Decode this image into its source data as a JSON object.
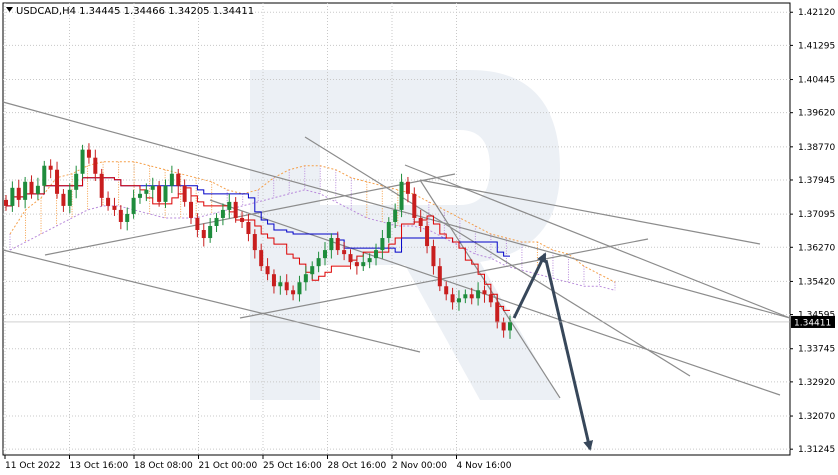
{
  "header": {
    "symbol": "USDCAD,H4",
    "open": "1.34445",
    "high": "1.34466",
    "low": "1.34205",
    "close": "1.34411"
  },
  "chart_data": {
    "type": "candlestick",
    "symbol": "USDCAD",
    "timeframe": "H4",
    "ohlc_header": {
      "open": 1.34445,
      "high": 1.34466,
      "low": 1.34205,
      "close": 1.34411
    },
    "current_price": "1.34411",
    "x_tick_labels": [
      "11 Oct 2022",
      "13 Oct 16:00",
      "18 Oct 08:00",
      "21 Oct 00:00",
      "25 Oct 16:00",
      "28 Oct 16:00",
      "2 Nov 00:00",
      "4 Nov 16:00"
    ],
    "y_tick_labels": [
      "1.42120",
      "1.41295",
      "1.40445",
      "1.39620",
      "1.38770",
      "1.37945",
      "1.37095",
      "1.36270",
      "1.35420",
      "1.34595",
      "1.33745",
      "1.32920",
      "1.32070",
      "1.31245"
    ],
    "ylim": [
      1.311,
      1.4235
    ],
    "grid": true,
    "indicators": [
      "Ichimoku Kinko Hyo (Tenkan-sen, Kijun-sen, Senkou Span cloud)"
    ],
    "closes": [
      1.373,
      1.3775,
      1.3745,
      1.379,
      1.376,
      1.378,
      1.383,
      1.382,
      1.376,
      1.373,
      1.377,
      1.381,
      1.387,
      1.385,
      1.381,
      1.375,
      1.373,
      1.372,
      1.369,
      1.371,
      1.375,
      1.376,
      1.377,
      1.378,
      1.374,
      1.378,
      1.381,
      1.378,
      1.374,
      1.37,
      1.367,
      1.365,
      1.368,
      1.37,
      1.372,
      1.374,
      1.37,
      1.369,
      1.366,
      1.362,
      1.358,
      1.356,
      1.353,
      1.354,
      1.352,
      1.351,
      1.354,
      1.356,
      1.358,
      1.36,
      1.362,
      1.365,
      1.362,
      1.361,
      1.359,
      1.358,
      1.359,
      1.36,
      1.362,
      1.365,
      1.369,
      1.372,
      1.379,
      1.376,
      1.37,
      1.368,
      1.363,
      1.358,
      1.353,
      1.351,
      1.349,
      1.35,
      1.351,
      1.35,
      1.352,
      1.351,
      1.349,
      1.344,
      1.342,
      1.3441
    ],
    "cloud_top": [
      1.366,
      1.372,
      1.375,
      1.38,
      1.381,
      1.383,
      1.384,
      1.384,
      1.384,
      1.383,
      1.382,
      1.381,
      1.38,
      1.379,
      1.377,
      1.376,
      1.377,
      1.38,
      1.382,
      1.383,
      1.383,
      1.382,
      1.38,
      1.379,
      1.378,
      1.377,
      1.376,
      1.374,
      1.372,
      1.37,
      1.368,
      1.366,
      1.365,
      1.364,
      1.364,
      1.362,
      1.361,
      1.358,
      1.356,
      1.354
    ],
    "cloud_bottom": [
      1.362,
      1.364,
      1.366,
      1.368,
      1.37,
      1.372,
      1.373,
      1.373,
      1.372,
      1.371,
      1.37,
      1.37,
      1.37,
      1.371,
      1.372,
      1.373,
      1.374,
      1.375,
      1.376,
      1.377,
      1.376,
      1.374,
      1.372,
      1.37,
      1.369,
      1.368,
      1.368,
      1.367,
      1.365,
      1.363,
      1.361,
      1.36,
      1.358,
      1.357,
      1.356,
      1.355,
      1.354,
      1.353,
      1.353,
      1.352
    ],
    "forecast_path": [
      1.3441,
      1.361,
      1.3125
    ]
  }
}
